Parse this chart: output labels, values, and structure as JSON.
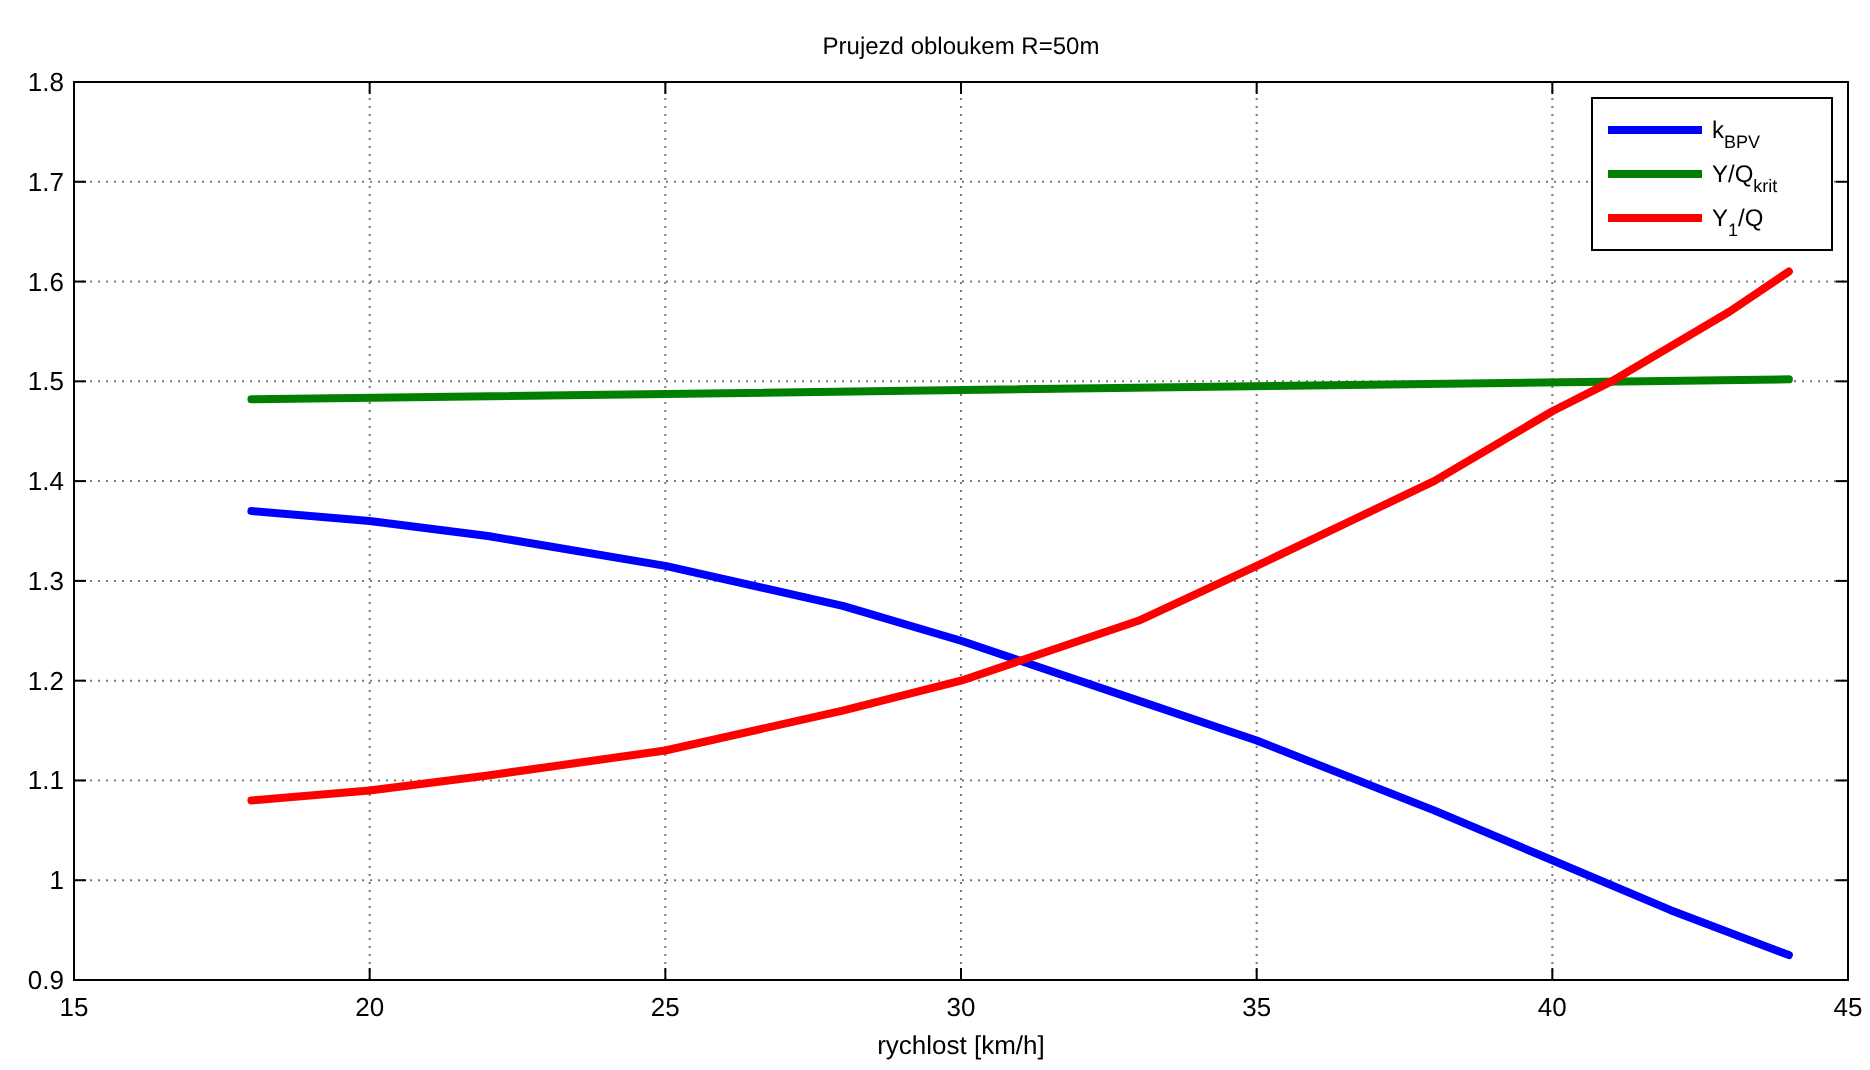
{
  "chart_data": {
    "type": "line",
    "title": "Prujezd obloukem R=50m",
    "xlabel": "rychlost [km/h]",
    "xlim": [
      15,
      45
    ],
    "xticks": [
      15,
      20,
      25,
      30,
      35,
      40,
      45
    ],
    "ylim": [
      0.9,
      1.8
    ],
    "yticks": [
      {
        "value": 0.9,
        "label": "0.9"
      },
      {
        "value": 1,
        "label": "1"
      },
      {
        "value": 1.1,
        "label": "1.1"
      },
      {
        "value": 1.2,
        "label": "1.2"
      },
      {
        "value": 1.3,
        "label": "1.3"
      },
      {
        "value": 1.4,
        "label": "1.4"
      },
      {
        "value": 1.5,
        "label": "1.5"
      },
      {
        "value": 1.6,
        "label": "1.6"
      },
      {
        "value": 1.7,
        "label": "1.7"
      },
      {
        "value": 1.8,
        "label": "1.8"
      }
    ],
    "grid": true,
    "legend": "top right",
    "line_style": "solid",
    "marker": "none",
    "series": [
      {
        "name": "k$_{BPV}$",
        "color": "#0000ff",
        "x": [
          18,
          20,
          22,
          25,
          28,
          30,
          31,
          33,
          35,
          38,
          40,
          42,
          44
        ],
        "values": [
          1.37,
          1.36,
          1.345,
          1.315,
          1.275,
          1.24,
          1.22,
          1.18,
          1.14,
          1.07,
          1.02,
          0.97,
          0.925
        ]
      },
      {
        "name": "Y/Q$_{krit}$",
        "color": "#007f00",
        "x": [
          18,
          44
        ],
        "values": [
          1.482,
          1.502
        ]
      },
      {
        "name": "Y$_{1}$/Q",
        "color": "#ff0000",
        "x": [
          18,
          20,
          22,
          25,
          28,
          30,
          31,
          33,
          35,
          38,
          40,
          41,
          43,
          44
        ],
        "values": [
          1.08,
          1.09,
          1.105,
          1.13,
          1.17,
          1.2,
          1.22,
          1.26,
          1.315,
          1.4,
          1.47,
          1.5,
          1.57,
          1.61
        ]
      }
    ]
  }
}
